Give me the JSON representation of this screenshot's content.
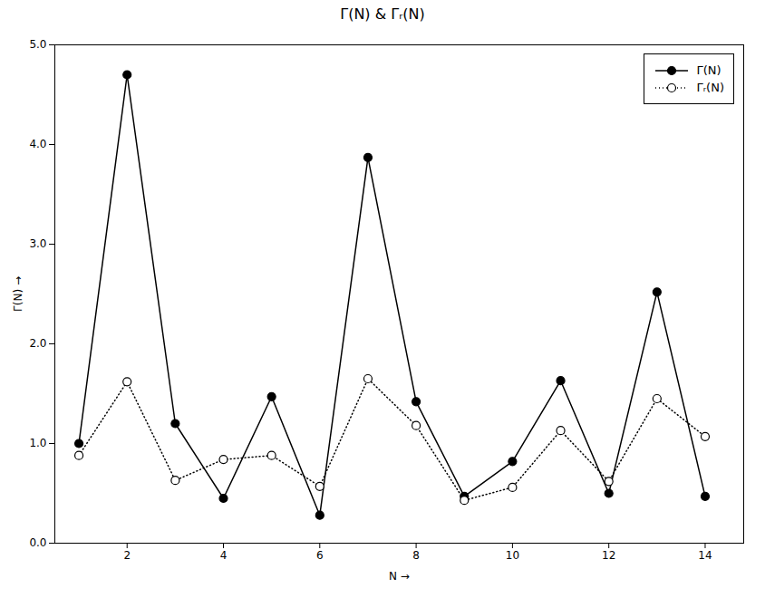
{
  "chart_data": {
    "type": "line",
    "title": "Γ(N) & Γᵣ(N)",
    "xlabel": "N",
    "ylabel": "Γ(N)",
    "x": [
      1,
      2,
      3,
      4,
      5,
      6,
      7,
      8,
      9,
      10,
      11,
      12,
      13,
      14
    ],
    "series": [
      {
        "name": "Γ(N)",
        "color": "black",
        "marker": "circle",
        "line_style": "solid",
        "values": [
          1.0,
          4.7,
          1.2,
          0.45,
          1.47,
          0.28,
          3.87,
          1.42,
          0.47,
          0.82,
          1.63,
          0.5,
          2.52,
          0.47
        ]
      },
      {
        "name": "Γᵣ(N)",
        "color": "black",
        "marker": "open_circle",
        "line_style": "dotted",
        "values": [
          0.88,
          1.62,
          0.63,
          0.84,
          0.88,
          0.57,
          1.65,
          1.18,
          0.43,
          0.56,
          1.13,
          0.62,
          1.45,
          1.07
        ]
      }
    ],
    "xlim": [
      0.5,
      14.8
    ],
    "ylim": [
      0,
      5
    ],
    "xticks": [
      2,
      4,
      6,
      8,
      10,
      12,
      14
    ],
    "yticks": [
      0,
      1,
      2,
      3,
      4,
      5
    ],
    "grid": false,
    "legend": "upper right"
  }
}
